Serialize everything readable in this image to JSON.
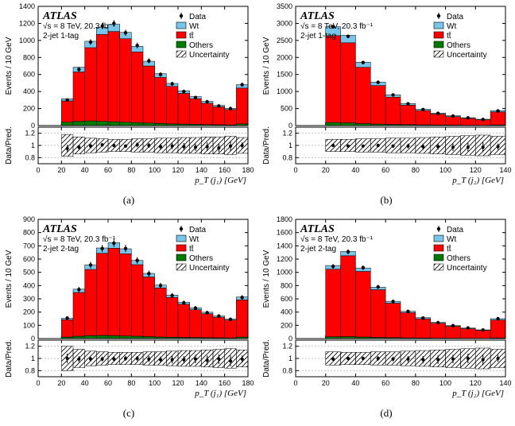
{
  "colors": {
    "tt": "#ff0000",
    "wt": "#79c5ea",
    "others": "#007a00",
    "data": "#000000",
    "axes": "#000000",
    "grid": "#888888",
    "hatch": "#000000",
    "background": "#ffffff"
  },
  "legend": {
    "items": [
      {
        "label": "Data",
        "type": "marker"
      },
      {
        "label": "Wt",
        "type": "fill",
        "colorKey": "wt"
      },
      {
        "label": "tt̄",
        "type": "fill",
        "colorKey": "tt"
      },
      {
        "label": "Others",
        "type": "fill",
        "colorKey": "others"
      },
      {
        "label": "Uncertainty",
        "type": "hatch"
      }
    ]
  },
  "atlas_label": "ATLAS",
  "energy_lumi": "√s = 8 TeV, 20.3 fb⁻¹",
  "ratio": {
    "ylabel": "Data/Pred.",
    "yticks": [
      0.8,
      1,
      1.2
    ],
    "ylim": [
      0.7,
      1.3
    ]
  },
  "panels": [
    {
      "caption": "(a)",
      "selection": "2-jet 1-tag",
      "xlabel": "p_T (j₁) [GeV]",
      "ylabel": "Events / 10 GeV",
      "xlim": [
        0,
        180
      ],
      "xtick_step": 20,
      "ylim": [
        0,
        1400
      ],
      "ytick_step": 200,
      "bin_edges": [
        20,
        30,
        40,
        50,
        60,
        70,
        80,
        90,
        100,
        110,
        120,
        130,
        140,
        150,
        160,
        170,
        180
      ],
      "bars": {
        "others": [
          40,
          50,
          55,
          50,
          45,
          40,
          35,
          30,
          25,
          20,
          18,
          15,
          12,
          10,
          8,
          20
        ],
        "tt": [
          250,
          580,
          860,
          1020,
          1060,
          980,
          830,
          670,
          540,
          440,
          360,
          300,
          250,
          210,
          180,
          420
        ],
        "wt": [
          25,
          55,
          75,
          85,
          85,
          75,
          65,
          55,
          45,
          35,
          30,
          25,
          22,
          18,
          15,
          40
        ]
      },
      "data": [
        300,
        660,
        980,
        1170,
        1200,
        1090,
        940,
        760,
        600,
        490,
        400,
        330,
        280,
        230,
        200,
        480
      ],
      "data_err": [
        20,
        28,
        34,
        37,
        38,
        36,
        33,
        30,
        27,
        24,
        22,
        20,
        18,
        17,
        16,
        24
      ],
      "ratio_vals": [
        0.95,
        0.97,
        0.99,
        1.01,
        1.0,
        0.99,
        1.01,
        1.0,
        0.98,
        0.99,
        0.98,
        0.97,
        0.98,
        0.96,
        0.99,
        1.0
      ],
      "ratio_err": [
        0.06,
        0.04,
        0.04,
        0.03,
        0.03,
        0.03,
        0.04,
        0.04,
        0.05,
        0.05,
        0.06,
        0.06,
        0.07,
        0.07,
        0.08,
        0.05
      ],
      "unc_band": [
        0.18,
        0.14,
        0.12,
        0.11,
        0.1,
        0.1,
        0.11,
        0.11,
        0.12,
        0.12,
        0.13,
        0.13,
        0.14,
        0.14,
        0.15,
        0.13
      ]
    },
    {
      "caption": "(b)",
      "selection": "2-jet 1-tag",
      "xlabel": "p_T (j₂) [GeV]",
      "ylabel": "Events / 10 GeV",
      "xlim": [
        0,
        140
      ],
      "xtick_step": 20,
      "ylim": [
        0,
        3500
      ],
      "ytick_step": 500,
      "bin_edges": [
        20,
        30,
        40,
        50,
        60,
        70,
        80,
        90,
        100,
        110,
        120,
        130,
        140
      ],
      "bars": {
        "others": [
          90,
          80,
          60,
          45,
          35,
          28,
          22,
          18,
          15,
          12,
          10,
          20
        ],
        "tt": [
          2550,
          2350,
          1650,
          1130,
          800,
          570,
          420,
          320,
          250,
          200,
          160,
          380
        ],
        "wt": [
          260,
          220,
          150,
          100,
          70,
          50,
          38,
          30,
          24,
          20,
          16,
          40
        ]
      },
      "data": [
        2900,
        2620,
        1850,
        1270,
        900,
        640,
        470,
        360,
        280,
        225,
        180,
        430
      ],
      "data_err": [
        55,
        52,
        44,
        37,
        31,
        26,
        23,
        20,
        18,
        16,
        14,
        22
      ],
      "ratio_vals": [
        1.0,
        0.99,
        0.99,
        1.0,
        0.99,
        0.99,
        0.98,
        0.98,
        0.97,
        0.97,
        0.97,
        0.98
      ],
      "ratio_err": [
        0.02,
        0.02,
        0.02,
        0.03,
        0.03,
        0.04,
        0.05,
        0.05,
        0.06,
        0.07,
        0.08,
        0.05
      ],
      "unc_band": [
        0.1,
        0.1,
        0.11,
        0.11,
        0.12,
        0.12,
        0.13,
        0.14,
        0.15,
        0.16,
        0.17,
        0.15
      ]
    },
    {
      "caption": "(c)",
      "selection": "2-jet 2-tag",
      "xlabel": "p_T (j₁) [GeV]",
      "ylabel": "Events / 10 GeV",
      "xlim": [
        0,
        180
      ],
      "xtick_step": 20,
      "ylim": [
        0,
        900
      ],
      "ytick_step": 100,
      "bin_edges": [
        20,
        30,
        40,
        50,
        60,
        70,
        80,
        90,
        100,
        110,
        120,
        130,
        140,
        150,
        160,
        170,
        180
      ],
      "bars": {
        "others": [
          12,
          18,
          22,
          24,
          22,
          20,
          18,
          15,
          12,
          10,
          9,
          8,
          7,
          6,
          5,
          12
        ],
        "tt": [
          130,
          330,
          500,
          620,
          660,
          620,
          540,
          450,
          370,
          300,
          250,
          210,
          180,
          155,
          135,
          280
        ],
        "wt": [
          12,
          25,
          35,
          40,
          42,
          38,
          32,
          27,
          22,
          18,
          16,
          14,
          12,
          10,
          9,
          22
        ]
      },
      "data": [
        155,
        370,
        555,
        680,
        720,
        680,
        590,
        490,
        400,
        325,
        270,
        230,
        195,
        170,
        145,
        310
      ],
      "data_err": [
        13,
        20,
        24,
        27,
        28,
        27,
        25,
        23,
        21,
        19,
        17,
        16,
        15,
        14,
        13,
        18
      ],
      "ratio_vals": [
        1.0,
        0.99,
        0.99,
        0.99,
        0.99,
        1.0,
        1.0,
        0.99,
        0.98,
        0.98,
        0.98,
        0.99,
        0.97,
        0.99,
        0.96,
        0.99
      ],
      "ratio_err": [
        0.08,
        0.05,
        0.04,
        0.04,
        0.04,
        0.04,
        0.04,
        0.05,
        0.05,
        0.06,
        0.06,
        0.07,
        0.08,
        0.08,
        0.09,
        0.06
      ],
      "unc_band": [
        0.2,
        0.15,
        0.12,
        0.11,
        0.1,
        0.1,
        0.1,
        0.11,
        0.11,
        0.12,
        0.13,
        0.13,
        0.14,
        0.15,
        0.16,
        0.14
      ]
    },
    {
      "caption": "(d)",
      "selection": "2-jet 2-tag",
      "xlabel": "p_T (j₂) [GeV]",
      "ylabel": "Events / 10 GeV",
      "xlim": [
        0,
        140
      ],
      "xtick_step": 20,
      "ylim": [
        0,
        1800
      ],
      "ytick_step": 200,
      "bin_edges": [
        20,
        30,
        40,
        50,
        60,
        70,
        80,
        90,
        100,
        110,
        120,
        130,
        140
      ],
      "bars": {
        "others": [
          28,
          30,
          24,
          18,
          14,
          11,
          9,
          7,
          6,
          5,
          4,
          10
        ],
        "tt": [
          1020,
          1220,
          990,
          720,
          520,
          380,
          290,
          225,
          180,
          145,
          120,
          270
        ],
        "wt": [
          55,
          65,
          52,
          38,
          28,
          21,
          17,
          13,
          11,
          9,
          8,
          20
        ]
      },
      "data": [
        1090,
        1310,
        1070,
        780,
        560,
        410,
        310,
        240,
        195,
        160,
        130,
        300
      ],
      "data_err": [
        34,
        37,
        34,
        29,
        25,
        21,
        18,
        16,
        15,
        13,
        12,
        18
      ],
      "ratio_vals": [
        0.99,
        1.0,
        1.0,
        1.0,
        0.99,
        0.99,
        0.98,
        0.98,
        0.99,
        1.0,
        0.98,
        1.0
      ],
      "ratio_err": [
        0.03,
        0.03,
        0.03,
        0.04,
        0.04,
        0.05,
        0.06,
        0.07,
        0.07,
        0.08,
        0.09,
        0.06
      ],
      "unc_band": [
        0.11,
        0.1,
        0.1,
        0.11,
        0.11,
        0.12,
        0.13,
        0.14,
        0.15,
        0.16,
        0.17,
        0.15
      ]
    }
  ]
}
